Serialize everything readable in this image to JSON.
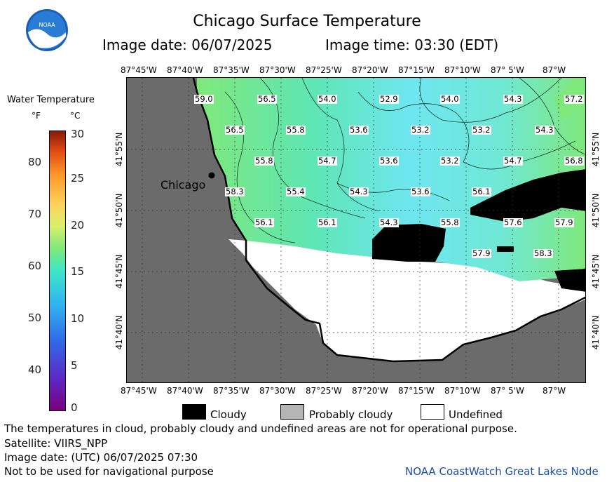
{
  "header": {
    "title": "Chicago Surface Temperature",
    "image_date": "Image date: 06/07/2025",
    "image_time": "Image time: 03:30 (EDT)"
  },
  "logo": {
    "text": "NOAA"
  },
  "scale": {
    "title": "Water Temperature",
    "unit_f": "°F",
    "unit_c": "°C",
    "f_ticks": [
      "80",
      "70",
      "60",
      "50",
      "40"
    ],
    "c_ticks": [
      "30",
      "25",
      "20",
      "15",
      "10",
      "5",
      "0"
    ]
  },
  "map": {
    "lon_labels": [
      "87°45'W",
      "87°40'W",
      "87°35'W",
      "87°30'W",
      "87°25'W",
      "87°20'W",
      "87°15'W",
      "87°10'W",
      "87° 5'W",
      "87°W"
    ],
    "lat_labels_left": [
      "41°55'N",
      "41°50'N",
      "41°45'N",
      "41°40'N"
    ],
    "lat_labels_right": [
      "41°55'N",
      "41°50'N",
      "41°45'N",
      "41°40'N"
    ],
    "city": "Chicago",
    "temps": [
      {
        "t": "59.0"
      },
      {
        "t": "56.5"
      },
      {
        "t": "54.0"
      },
      {
        "t": "52.9"
      },
      {
        "t": "54.0"
      },
      {
        "t": "54.3"
      },
      {
        "t": "57.2"
      },
      {
        "t": "56.5"
      },
      {
        "t": "55.8"
      },
      {
        "t": "53.6"
      },
      {
        "t": "53.2"
      },
      {
        "t": "53.2"
      },
      {
        "t": "54.3"
      },
      {
        "t": "55.8"
      },
      {
        "t": "54.7"
      },
      {
        "t": "53.6"
      },
      {
        "t": "53.2"
      },
      {
        "t": "54.7"
      },
      {
        "t": "56.8"
      },
      {
        "t": "58.3"
      },
      {
        "t": "55.4"
      },
      {
        "t": "54.3"
      },
      {
        "t": "53.6"
      },
      {
        "t": "56.1"
      },
      {
        "t": "56.1"
      },
      {
        "t": "56.1"
      },
      {
        "t": "54.3"
      },
      {
        "t": "55.8"
      },
      {
        "t": "57.6"
      },
      {
        "t": "57.9"
      },
      {
        "t": "57.9"
      },
      {
        "t": "58.3"
      }
    ]
  },
  "legend": {
    "cloudy": "Cloudy",
    "probably_cloudy": "Probably cloudy",
    "undefined": "Undefined"
  },
  "footer": {
    "warning": "The temperatures in cloud, probably cloudy and undefined areas are not for operational purpose.",
    "satellite": "Satellite: VIIRS_NPP",
    "utc_date": "Image date: (UTC) 06/07/2025  07:30",
    "nav": "Not to be used for navigational purpose",
    "credit": "NOAA CoastWatch Great Lakes Node"
  }
}
